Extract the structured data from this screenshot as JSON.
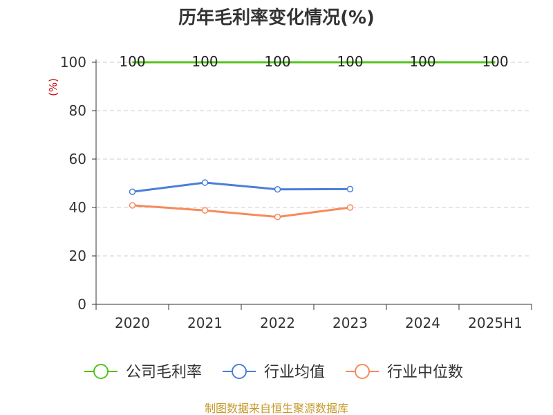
{
  "chart_data": {
    "type": "line",
    "title": "历年毛利率变化情况(%)",
    "unit_label": "(%)",
    "categories": [
      "2020",
      "2021",
      "2022",
      "2023",
      "2024",
      "2025H1"
    ],
    "ylim": [
      0,
      100
    ],
    "yticks": [
      0,
      20,
      40,
      60,
      80,
      100
    ],
    "grid": true,
    "legend_position": "bottom",
    "series": [
      {
        "name": "公司毛利率",
        "color": "#52c41a",
        "show_labels": true,
        "show_markers": false,
        "values": [
          100,
          100,
          100,
          100,
          100,
          100
        ]
      },
      {
        "name": "行业均值",
        "color": "#4a7fd9",
        "show_labels": false,
        "show_markers": true,
        "values": [
          46.5,
          50.3,
          47.5,
          47.6,
          null,
          null
        ]
      },
      {
        "name": "行业中位数",
        "color": "#f78a5a",
        "show_labels": false,
        "show_markers": true,
        "values": [
          40.9,
          38.8,
          36.1,
          40.0,
          null,
          null
        ]
      }
    ],
    "source": "制图数据来自恒生聚源数据库"
  }
}
